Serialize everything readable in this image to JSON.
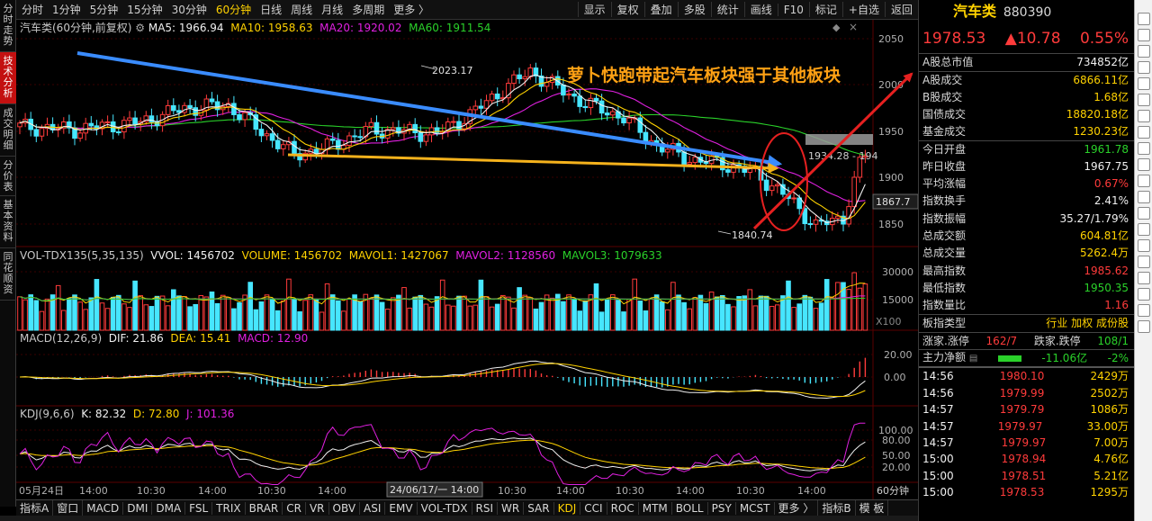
{
  "left_tabs": [
    "分时走势",
    "技术分析",
    "成交明细",
    "分价表",
    "基本资料",
    "同花顺资"
  ],
  "period_bar": {
    "periods": [
      "分时",
      "1分钟",
      "5分钟",
      "15分钟",
      "30分钟",
      "60分钟",
      "日线",
      "周线",
      "月线",
      "多周期",
      "更多 〉"
    ],
    "active": "60分钟",
    "tools": [
      "显示",
      "复权",
      "叠加",
      "多股",
      "统计",
      "画线",
      "F10",
      "标记",
      "+自选",
      "返回"
    ]
  },
  "main_legend": {
    "name": "汽车类(60分钟,前复权)",
    "ma5": "MA5: 1966.94",
    "ma10": "MA10: 1958.63",
    "ma20": "MA20: 1920.02",
    "ma60": "MA60: 1911.54"
  },
  "annotations": {
    "headline": "萝卜快跑带起汽车板块强于其他板块",
    "high_label": "2023.17",
    "low_label": "1840.74",
    "box_label": "1934.28 - 194",
    "price_tag": "1867.7"
  },
  "vol_legend": {
    "name": "VOL-TDX135(5,35,135)",
    "vvol": "VVOL: 1456702",
    "volume": "VOLUME: 1456702",
    "mavol1": "MAVOL1: 1427067",
    "mavol2": "MAVOL2: 1128560",
    "mavol3": "MAVOL3: 1079633",
    "unit": "X100"
  },
  "macd_legend": {
    "name": "MACD(12,26,9)",
    "dif": "DIF: 21.86",
    "dea": "DEA: 15.41",
    "macd": "MACD: 12.90"
  },
  "kdj_legend": {
    "name": "KDJ(9,6,6)",
    "k": "K: 82.32",
    "d": "D: 72.80",
    "j": "J: 101.36"
  },
  "axes": {
    "price_ticks": [
      "2050",
      "2000",
      "1950",
      "1900",
      "1850"
    ],
    "vol_ticks": [
      "30000",
      "15000"
    ],
    "macd_ticks": [
      "20.00",
      "0.00"
    ],
    "kdj_ticks": [
      "100.00",
      "80.00",
      "50.00",
      "20.00"
    ],
    "time_labels": [
      "05月24日",
      "14:00",
      "10:30",
      "14:00",
      "10:30",
      "14:00",
      "10:30",
      "14:00",
      "10:30",
      "14:00",
      "10:30",
      "14:00"
    ],
    "cursor_time": "24/06/17/一 14:00",
    "period_label": "60分钟"
  },
  "indicator_tabs": [
    "指标A",
    "窗口",
    "MACD",
    "DMI",
    "DMA",
    "FSL",
    "TRIX",
    "BRAR",
    "CR",
    "VR",
    "OBV",
    "ASI",
    "EMV",
    "VOL-TDX",
    "RSI",
    "WR",
    "SAR",
    "KDJ",
    "CCI",
    "ROC",
    "MTM",
    "BOLL",
    "PSY",
    "MCST",
    "更多 〉",
    "指标B",
    "模 板"
  ],
  "indicator_active": "KDJ",
  "right_panel": {
    "title": "汽车类",
    "code": "880390",
    "price": "1978.53",
    "change": "▲10.78",
    "change_pct": "0.55%",
    "stats": [
      {
        "k": "A股总市值",
        "v": "734852亿",
        "c": "white"
      },
      {
        "k": "A股成交",
        "v": "6866.11亿",
        "c": "yellow"
      },
      {
        "k": "B股成交",
        "v": "1.68亿",
        "c": "yellow"
      },
      {
        "k": "国债成交",
        "v": "18820.18亿",
        "c": "yellow"
      },
      {
        "k": "基金成交",
        "v": "1230.23亿",
        "c": "yellow"
      },
      {
        "k": "今日开盘",
        "v": "1961.78",
        "c": "green"
      },
      {
        "k": "昨日收盘",
        "v": "1967.75",
        "c": "white"
      },
      {
        "k": "平均涨幅",
        "v": "0.67%",
        "c": "red"
      },
      {
        "k": "指数换手",
        "v": "2.41%",
        "c": "white"
      },
      {
        "k": "指数振幅",
        "v": "35.27/1.79%",
        "c": "white"
      },
      {
        "k": "总成交额",
        "v": "604.81亿",
        "c": "yellow"
      },
      {
        "k": "总成交量",
        "v": "5262.4万",
        "c": "yellow"
      },
      {
        "k": "最高指数",
        "v": "1985.62",
        "c": "red"
      },
      {
        "k": "最低指数",
        "v": "1950.35",
        "c": "green"
      },
      {
        "k": "指数量比",
        "v": "1.16",
        "c": "red"
      }
    ],
    "board_type": {
      "k": "板指类型",
      "tags": [
        "行业",
        "加权",
        "成份股"
      ]
    },
    "updown": {
      "k1": "涨家.涨停",
      "v1": "162/7",
      "k2": "跌家.跌停",
      "v2": "108/1"
    },
    "main_flow": {
      "k": "主力净额",
      "v1": "-11.06亿",
      "v2": "-2%"
    },
    "ticks": [
      {
        "t": "14:56",
        "p": "1980.10",
        "v": "2429万"
      },
      {
        "t": "14:56",
        "p": "1979.99",
        "v": "2502万"
      },
      {
        "t": "14:57",
        "p": "1979.79",
        "v": "1086万"
      },
      {
        "t": "14:57",
        "p": "1979.97",
        "v": "33.00万"
      },
      {
        "t": "14:57",
        "p": "1979.97",
        "v": "7.00万"
      },
      {
        "t": "15:00",
        "p": "1978.94",
        "v": "4.76亿"
      },
      {
        "t": "15:00",
        "p": "1978.51",
        "v": "5.21亿"
      },
      {
        "t": "15:00",
        "p": "1978.53",
        "v": "1295万"
      }
    ]
  },
  "colors": {
    "up": "#ff3b3b",
    "down": "#47e6ff",
    "ma5": "#f0f0f0",
    "ma10": "#ffd200",
    "ma20": "#e020e0",
    "ma60": "#2ad12a",
    "blue_arrow": "#3a8cff",
    "yellow_arrow": "#f5b21c",
    "red_arrow": "#e52020"
  }
}
